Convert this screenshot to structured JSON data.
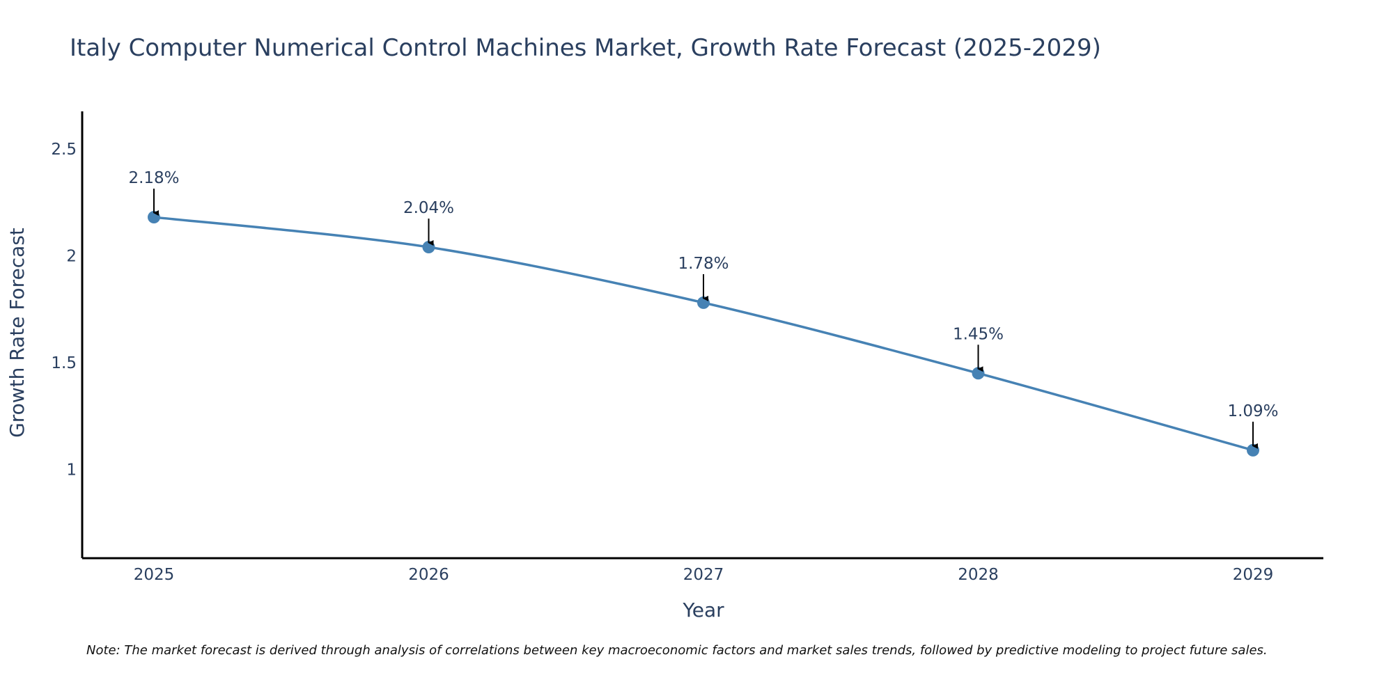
{
  "chart_data": {
    "type": "line",
    "title": "Italy Computer Numerical Control Machines Market, Growth Rate Forecast (2025-2029)",
    "xlabel": "Year",
    "ylabel": "Growth Rate Forecast",
    "categories": [
      "2025",
      "2026",
      "2027",
      "2028",
      "2029"
    ],
    "values": [
      2.18,
      2.04,
      1.78,
      1.45,
      1.09
    ],
    "data_labels": [
      "2.18%",
      "2.04%",
      "1.78%",
      "1.45%",
      "1.09%"
    ],
    "ylim": [
      0.585,
      2.675
    ],
    "yticks": [
      1,
      1.5,
      2,
      2.5
    ],
    "ytick_labels": [
      "1",
      "1.5",
      "2",
      "2.5"
    ],
    "grid": false,
    "legend": "none",
    "line_color": "#4682b4",
    "marker_color": "#4682b4",
    "arrow_color": "#000000"
  },
  "note": "Note: The market forecast is derived through analysis of correlations between key macroeconomic factors and market sales trends, followed by predictive modeling to project future sales."
}
